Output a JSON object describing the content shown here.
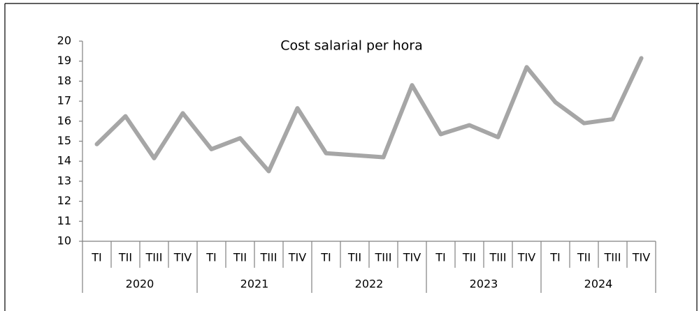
{
  "chart_data": {
    "type": "line",
    "title": "Cost salarial per hora",
    "categories": [
      "TI",
      "TII",
      "TIII",
      "TIV",
      "TI",
      "TII",
      "TIII",
      "TIV",
      "TI",
      "TII",
      "TIII",
      "TIV",
      "TI",
      "TII",
      "TIII",
      "TIV",
      "TI",
      "TII",
      "TIII",
      "TIV"
    ],
    "groups": [
      "2020",
      "2021",
      "2022",
      "2023",
      "2024"
    ],
    "series": [
      {
        "name": "Cost salarial per hora",
        "color": "#a6a6a6",
        "values": [
          14.85,
          16.25,
          14.15,
          16.4,
          14.6,
          15.15,
          13.5,
          16.65,
          14.4,
          14.3,
          14.2,
          17.8,
          15.35,
          15.8,
          15.2,
          18.7,
          16.95,
          15.9,
          16.1,
          19.15
        ]
      }
    ],
    "ylim": [
      10,
      20
    ],
    "yticks": [
      10,
      11,
      12,
      13,
      14,
      15,
      16,
      17,
      18,
      19,
      20
    ],
    "grid": false
  }
}
